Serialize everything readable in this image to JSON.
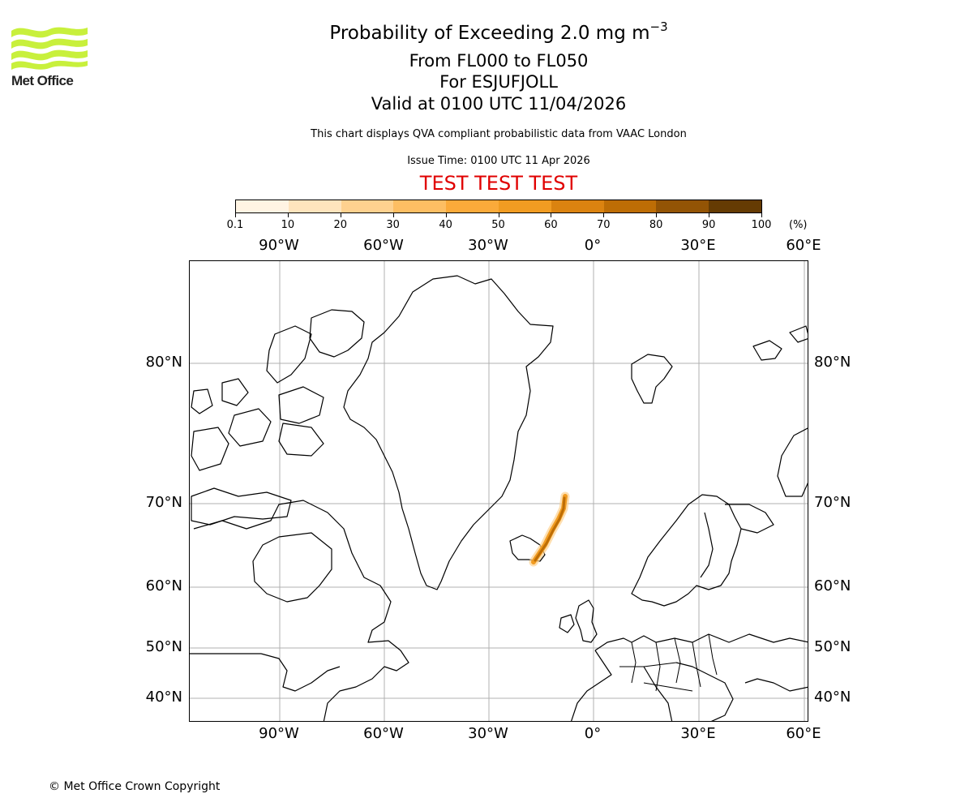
{
  "logo": {
    "name": "Met Office",
    "color": "#c8f03c"
  },
  "header": {
    "title_main": "Probability of Exceeding 2.0 mg m",
    "title_superscript": "−3",
    "flight_levels": "From FL000 to FL050",
    "volcano": "For ESJUFJOLL",
    "valid_time": "Valid at 0100 UTC 11/04/2026",
    "description": "This chart displays QVA compliant probabilistic data from VAAC London",
    "issue_time": "Issue Time: 0100 UTC 11 Apr 2026",
    "test_banner": "TEST TEST TEST",
    "test_banner_color": "#e00000"
  },
  "colorbar": {
    "unit": "(%)",
    "tick_labels": [
      "0.1",
      "10",
      "20",
      "30",
      "40",
      "50",
      "60",
      "70",
      "80",
      "90",
      "100"
    ],
    "colors": [
      "#fff4e3",
      "#fee4bd",
      "#fed18f",
      "#fdbe63",
      "#fbaa3a",
      "#f19c22",
      "#db8310",
      "#bd6d05",
      "#935405",
      "#653b03"
    ]
  },
  "map": {
    "lon_labels": [
      "90°W",
      "60°W",
      "30°W",
      "0°",
      "30°E",
      "60°E"
    ],
    "lat_labels": [
      "80°N",
      "70°N",
      "60°N",
      "50°N",
      "40°N"
    ],
    "gridline_color": "#b0b0b0",
    "coastline_color": "#000000"
  },
  "chart_data": {
    "type": "heatmap",
    "title": "Probability of Exceeding 2.0 mg m−3",
    "subtitle": [
      "From FL000 to FL050",
      "For ESJUFJOLL",
      "Valid at 0100 UTC 11/04/2026"
    ],
    "colorbar_bounds": [
      0.1,
      10,
      20,
      30,
      40,
      50,
      60,
      70,
      80,
      90,
      100
    ],
    "colorbar_unit": "%",
    "xaxis_ticks": [
      "90°W",
      "60°W",
      "30°W",
      "0°",
      "30°E",
      "60°E"
    ],
    "yaxis_ticks": [
      "80°N",
      "70°N",
      "60°N",
      "50°N",
      "40°N"
    ],
    "extent": {
      "lon": [
        -115,
        62
      ],
      "lat": [
        37,
        85
      ]
    },
    "grid": true,
    "plume": {
      "description": "Narrow ash plume from SE Iceland extending NNE",
      "approx_path_latlon": [
        [
          63.5,
          -17.5
        ],
        [
          64.5,
          -15
        ],
        [
          66.5,
          -11
        ],
        [
          68.5,
          -9
        ],
        [
          70.5,
          -8.5
        ]
      ],
      "max_probability_band": "60-80"
    }
  },
  "footer": {
    "copyright": "© Met Office Crown Copyright"
  }
}
